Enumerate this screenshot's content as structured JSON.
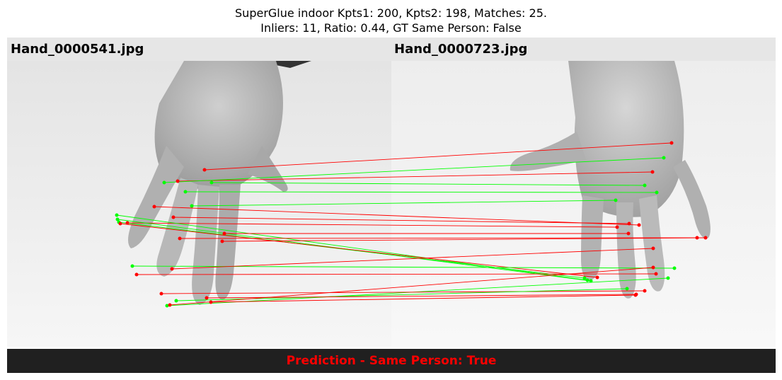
{
  "title_line1": "SuperGlue indoor Kpts1: 200, Kpts2: 198, Matches: 25.",
  "title_line2": "Inliers: 11, Ratio: 0.44, GT Same Person: False",
  "left_image": {
    "filename": "Hand_0000541.jpg"
  },
  "right_image": {
    "filename": "Hand_0000723.jpg"
  },
  "footer": {
    "prediction": "Prediction - Same Person: True"
  },
  "colors": {
    "inlier": "#00ff00",
    "outlier": "#ff0000",
    "footer_bg": "#202020",
    "label_bar": "#e6e6e6"
  }
}
